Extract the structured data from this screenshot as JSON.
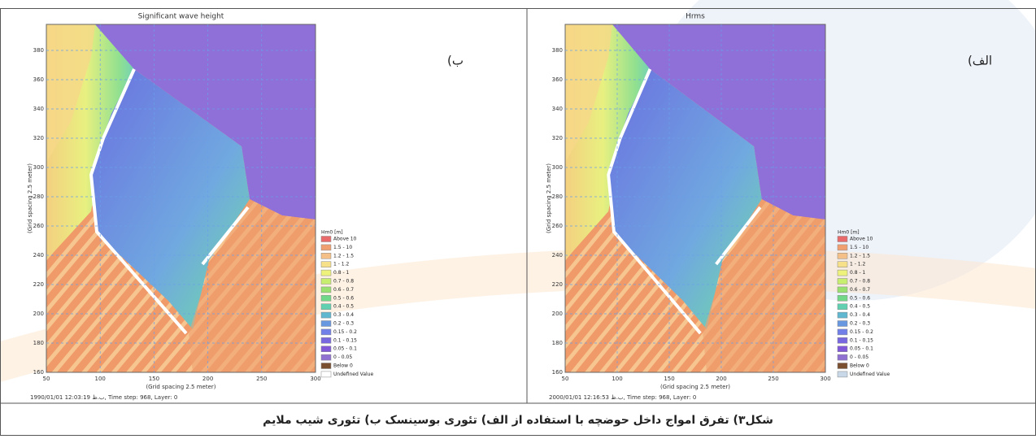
{
  "panels": [
    {
      "label": "ب)",
      "title": "Significant wave height",
      "y_axis_label": "(Grid spacing 2.5 meter)",
      "x_axis_label": "(Grid spacing 2.5 meter)",
      "xticks": [
        "50",
        "100",
        "150",
        "200",
        "250",
        "300"
      ],
      "yticks": [
        "160",
        "180",
        "200",
        "220",
        "240",
        "260",
        "280",
        "300",
        "320",
        "340",
        "360",
        "380"
      ],
      "legend_title": "Hm0 [m]",
      "legend": [
        {
          "label": "Above 10",
          "color": "#e86a6a"
        },
        {
          "label": "1.5 - 10",
          "color": "#f0a070"
        },
        {
          "label": "1.2 - 1.5",
          "color": "#f5c088"
        },
        {
          "label": "1 - 1.2",
          "color": "#f7e08a"
        },
        {
          "label": "0.8 - 1",
          "color": "#eef27a"
        },
        {
          "label": "0.7 - 0.8",
          "color": "#c8ee70"
        },
        {
          "label": "0.6 - 0.7",
          "color": "#98e070"
        },
        {
          "label": "0.5 - 0.6",
          "color": "#70d888"
        },
        {
          "label": "0.4 - 0.5",
          "color": "#60d0b0"
        },
        {
          "label": "0.3 - 0.4",
          "color": "#60b8d0"
        },
        {
          "label": "0.2 - 0.3",
          "color": "#6898e0"
        },
        {
          "label": "0.15 - 0.2",
          "color": "#7080e8"
        },
        {
          "label": "0.1 - 0.15",
          "color": "#7868e0"
        },
        {
          "label": "0.05 - 0.1",
          "color": "#8058d8"
        },
        {
          "label": "0 - 0.05",
          "color": "#9070d0"
        },
        {
          "label": "Below 0",
          "color": "#7a5030"
        },
        {
          "label": "Undefined Value",
          "color": "#ffffff"
        }
      ],
      "footer": "1990/01/01 12:03:19 ب.ظ, Time step: 968, Layer: 0"
    },
    {
      "label": "الف)",
      "title": "Hrms",
      "y_axis_label": "(Grid spacing 2.5 meter)",
      "x_axis_label": "(Grid spacing 2.5 meter)",
      "xticks": [
        "50",
        "100",
        "150",
        "200",
        "250",
        "300"
      ],
      "yticks": [
        "160",
        "180",
        "200",
        "220",
        "240",
        "260",
        "280",
        "300",
        "320",
        "340",
        "360",
        "380"
      ],
      "legend_title": "Hm0 [m]",
      "legend": [
        {
          "label": "Above 10",
          "color": "#e86a6a"
        },
        {
          "label": "1.5 - 10",
          "color": "#f0a070"
        },
        {
          "label": "1.2 - 1.5",
          "color": "#f5c088"
        },
        {
          "label": "1 - 1.2",
          "color": "#f7e08a"
        },
        {
          "label": "0.8 - 1",
          "color": "#eef27a"
        },
        {
          "label": "0.7 - 0.8",
          "color": "#c8ee70"
        },
        {
          "label": "0.6 - 0.7",
          "color": "#98e070"
        },
        {
          "label": "0.5 - 0.6",
          "color": "#70d888"
        },
        {
          "label": "0.4 - 0.5",
          "color": "#60d0b0"
        },
        {
          "label": "0.3 - 0.4",
          "color": "#60b8d0"
        },
        {
          "label": "0.2 - 0.3",
          "color": "#6898e0"
        },
        {
          "label": "0.15 - 0.2",
          "color": "#7080e8"
        },
        {
          "label": "0.1 - 0.15",
          "color": "#7868e0"
        },
        {
          "label": "0.05 - 0.1",
          "color": "#8058d8"
        },
        {
          "label": "0 - 0.05",
          "color": "#9070d0"
        },
        {
          "label": "Below 0",
          "color": "#7a5030"
        },
        {
          "label": "Undefined Value",
          "color": "#c8d8e8"
        }
      ],
      "footer": "2000/01/01 12:16:53 ب.ظ, Time step: 968, Layer: 0"
    }
  ],
  "caption": "شکل۳) تفرق امواج داخل حوضچه با استفاده از الف) تئوری بوسینسک ب) تئوری شیب ملایم"
}
